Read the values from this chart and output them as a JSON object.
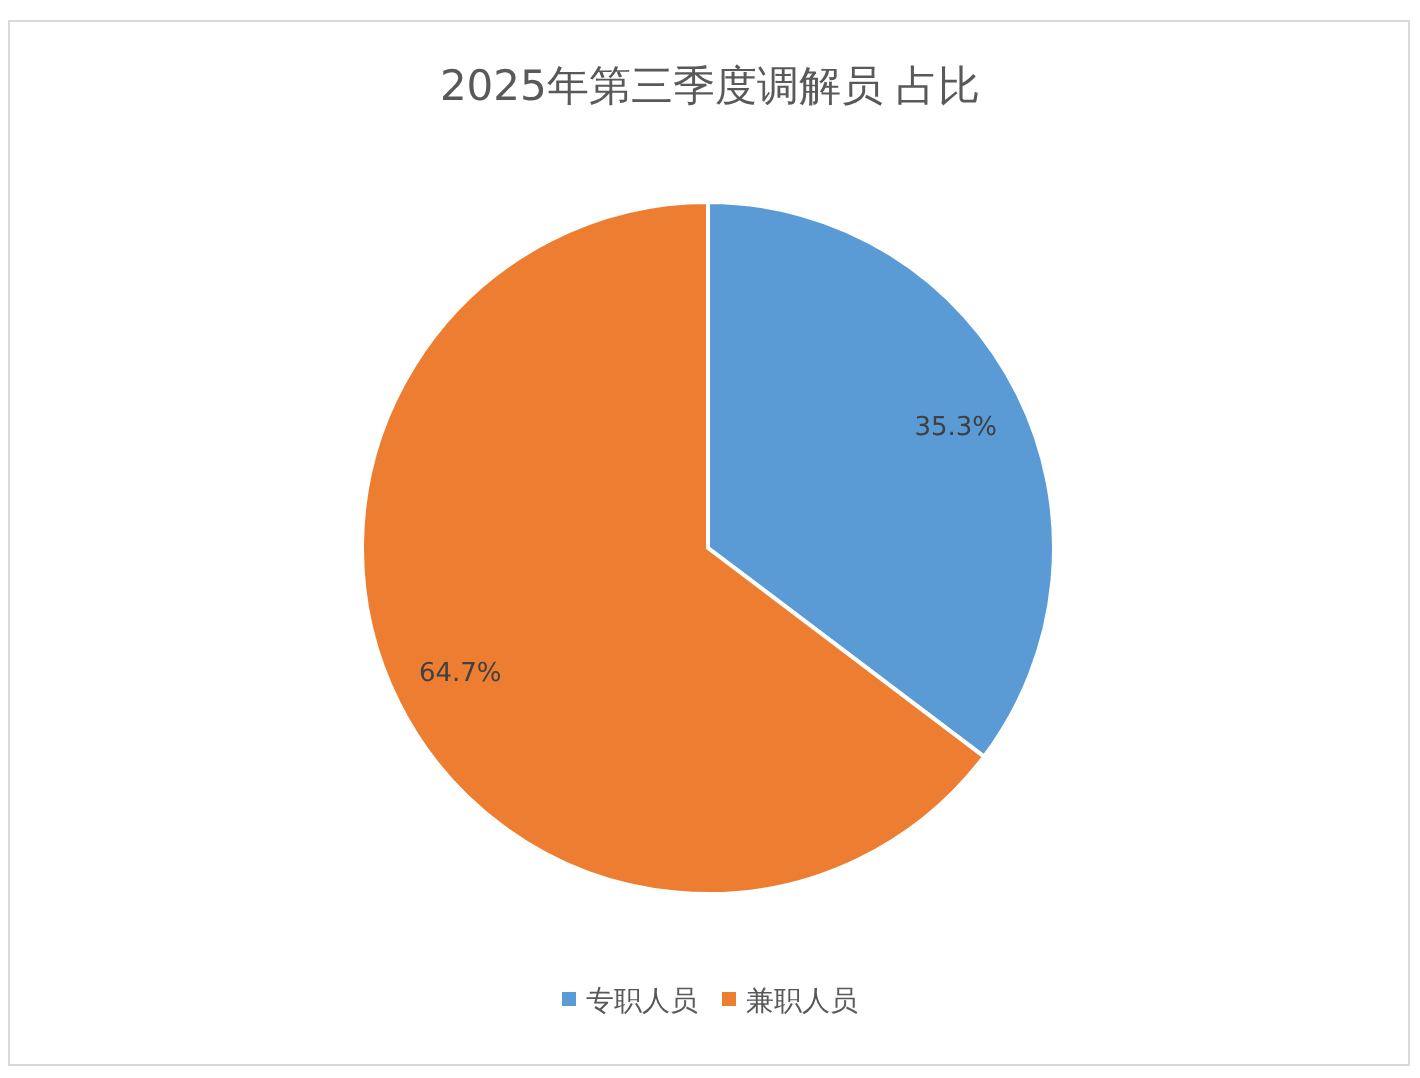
{
  "chart_data": {
    "type": "pie",
    "title": "2025年第三季度调解员 占比",
    "categories": [
      "专职人员",
      "兼职人员"
    ],
    "values": [
      35.3,
      64.7
    ],
    "colors": [
      "#5b9bd5",
      "#ed7d31"
    ],
    "value_labels": [
      "35.3%",
      "64.7%"
    ],
    "legend": "bottom"
  }
}
